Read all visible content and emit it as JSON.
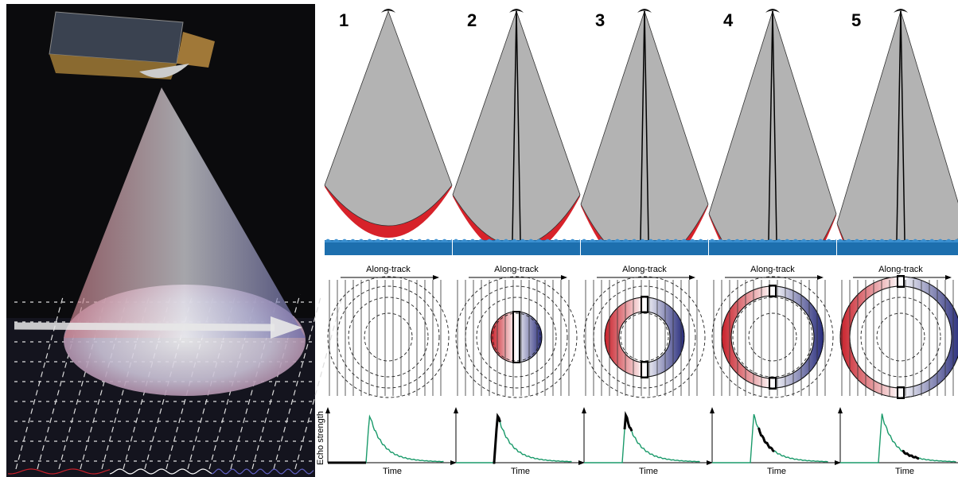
{
  "panels": [
    {
      "number": "1",
      "direction_label": "Along-track",
      "x_axis_label": "Time"
    },
    {
      "number": "2",
      "direction_label": "Along-track",
      "x_axis_label": "Time"
    },
    {
      "number": "3",
      "direction_label": "Along-track",
      "x_axis_label": "Time"
    },
    {
      "number": "4",
      "direction_label": "Along-track",
      "x_axis_label": "Time"
    },
    {
      "number": "5",
      "direction_label": "Along-track",
      "x_axis_label": "Time"
    }
  ],
  "y_axis_label": "Echo strength"
}
